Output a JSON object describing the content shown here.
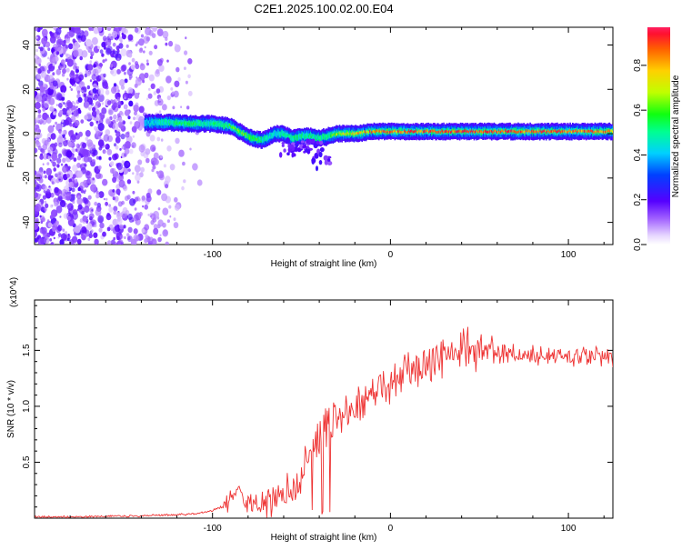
{
  "chart_data": [
    {
      "type": "heatmap",
      "title": "C2E1.2025.100.02.00.E04",
      "xlabel": "Height of straight line (km)",
      "ylabel": "Frequency (Hz)",
      "xlim": [
        -200,
        125
      ],
      "ylim": [
        -50,
        48
      ],
      "xticks": [
        -100,
        0,
        100
      ],
      "xtick_labels": [
        "-100",
        "0",
        "100"
      ],
      "yticks": [
        -40,
        -20,
        0,
        20,
        40
      ],
      "ytick_labels": [
        "-40",
        "-20",
        "0",
        "20",
        "40"
      ],
      "colorbar": {
        "label": "Normalized spectral amplitude",
        "range": [
          0.0,
          0.97
        ],
        "ticks": [
          0.0,
          0.2,
          0.4,
          0.6,
          0.8
        ],
        "tick_labels": [
          "0.0",
          "0.2",
          "0.4",
          "0.6",
          "0.8"
        ]
      },
      "ridge": {
        "x": [
          -138,
          -125,
          -110,
          -100,
          -90,
          -85,
          -78,
          -72,
          -65,
          -60,
          -55,
          -50,
          -45,
          -40,
          -35,
          -30,
          -20,
          -10,
          0,
          20,
          40,
          60,
          80,
          100,
          125
        ],
        "freq": [
          5,
          5,
          4.5,
          4.5,
          3.5,
          1,
          -2,
          -3,
          0,
          0,
          -2,
          -1,
          -1,
          -2,
          -1,
          0,
          0,
          1,
          1,
          1,
          1,
          1,
          1,
          1,
          1
        ],
        "amplitude": [
          0.4,
          0.5,
          0.55,
          0.5,
          0.6,
          0.65,
          0.6,
          0.5,
          0.45,
          0.5,
          0.5,
          0.55,
          0.5,
          0.5,
          0.6,
          0.7,
          0.75,
          0.85,
          0.9,
          0.92,
          0.95,
          0.92,
          0.9,
          0.9,
          0.85
        ]
      }
    },
    {
      "type": "line",
      "title": "",
      "xlabel": "Height of straight line (km)",
      "ylabel": "SNR (10 * v/v)",
      "multiplier_label": "(x10^4)",
      "xlim": [
        -200,
        125
      ],
      "ylim": [
        0,
        1.95
      ],
      "xticks": [
        -100,
        0,
        100
      ],
      "xtick_labels": [
        "-100",
        "0",
        "100"
      ],
      "yticks": [
        0.5,
        1.0,
        1.5
      ],
      "ytick_labels": [
        "0.5",
        "1.0",
        "1.5"
      ],
      "color": "#ee3333",
      "series": [
        {
          "name": "SNR",
          "x": [
            -200,
            -180,
            -160,
            -140,
            -120,
            -110,
            -100,
            -92,
            -88,
            -84,
            -80,
            -75,
            -70,
            -65,
            -60,
            -55,
            -50,
            -45,
            -40,
            -35,
            -30,
            -25,
            -20,
            -15,
            -10,
            -5,
            0,
            5,
            10,
            15,
            20,
            25,
            30,
            35,
            40,
            45,
            50,
            55,
            60,
            70,
            80,
            90,
            100,
            110,
            120,
            125
          ],
          "values": [
            0.01,
            0.01,
            0.015,
            0.02,
            0.03,
            0.04,
            0.07,
            0.12,
            0.25,
            0.2,
            0.12,
            0.15,
            0.13,
            0.17,
            0.21,
            0.25,
            0.38,
            0.55,
            0.72,
            0.88,
            0.85,
            0.9,
            1.0,
            1.02,
            1.1,
            1.12,
            1.2,
            1.22,
            1.3,
            1.3,
            1.36,
            1.42,
            1.45,
            1.47,
            1.5,
            1.52,
            1.5,
            1.48,
            1.48,
            1.46,
            1.45,
            1.45,
            1.44,
            1.44,
            1.43,
            1.42
          ]
        }
      ]
    }
  ]
}
